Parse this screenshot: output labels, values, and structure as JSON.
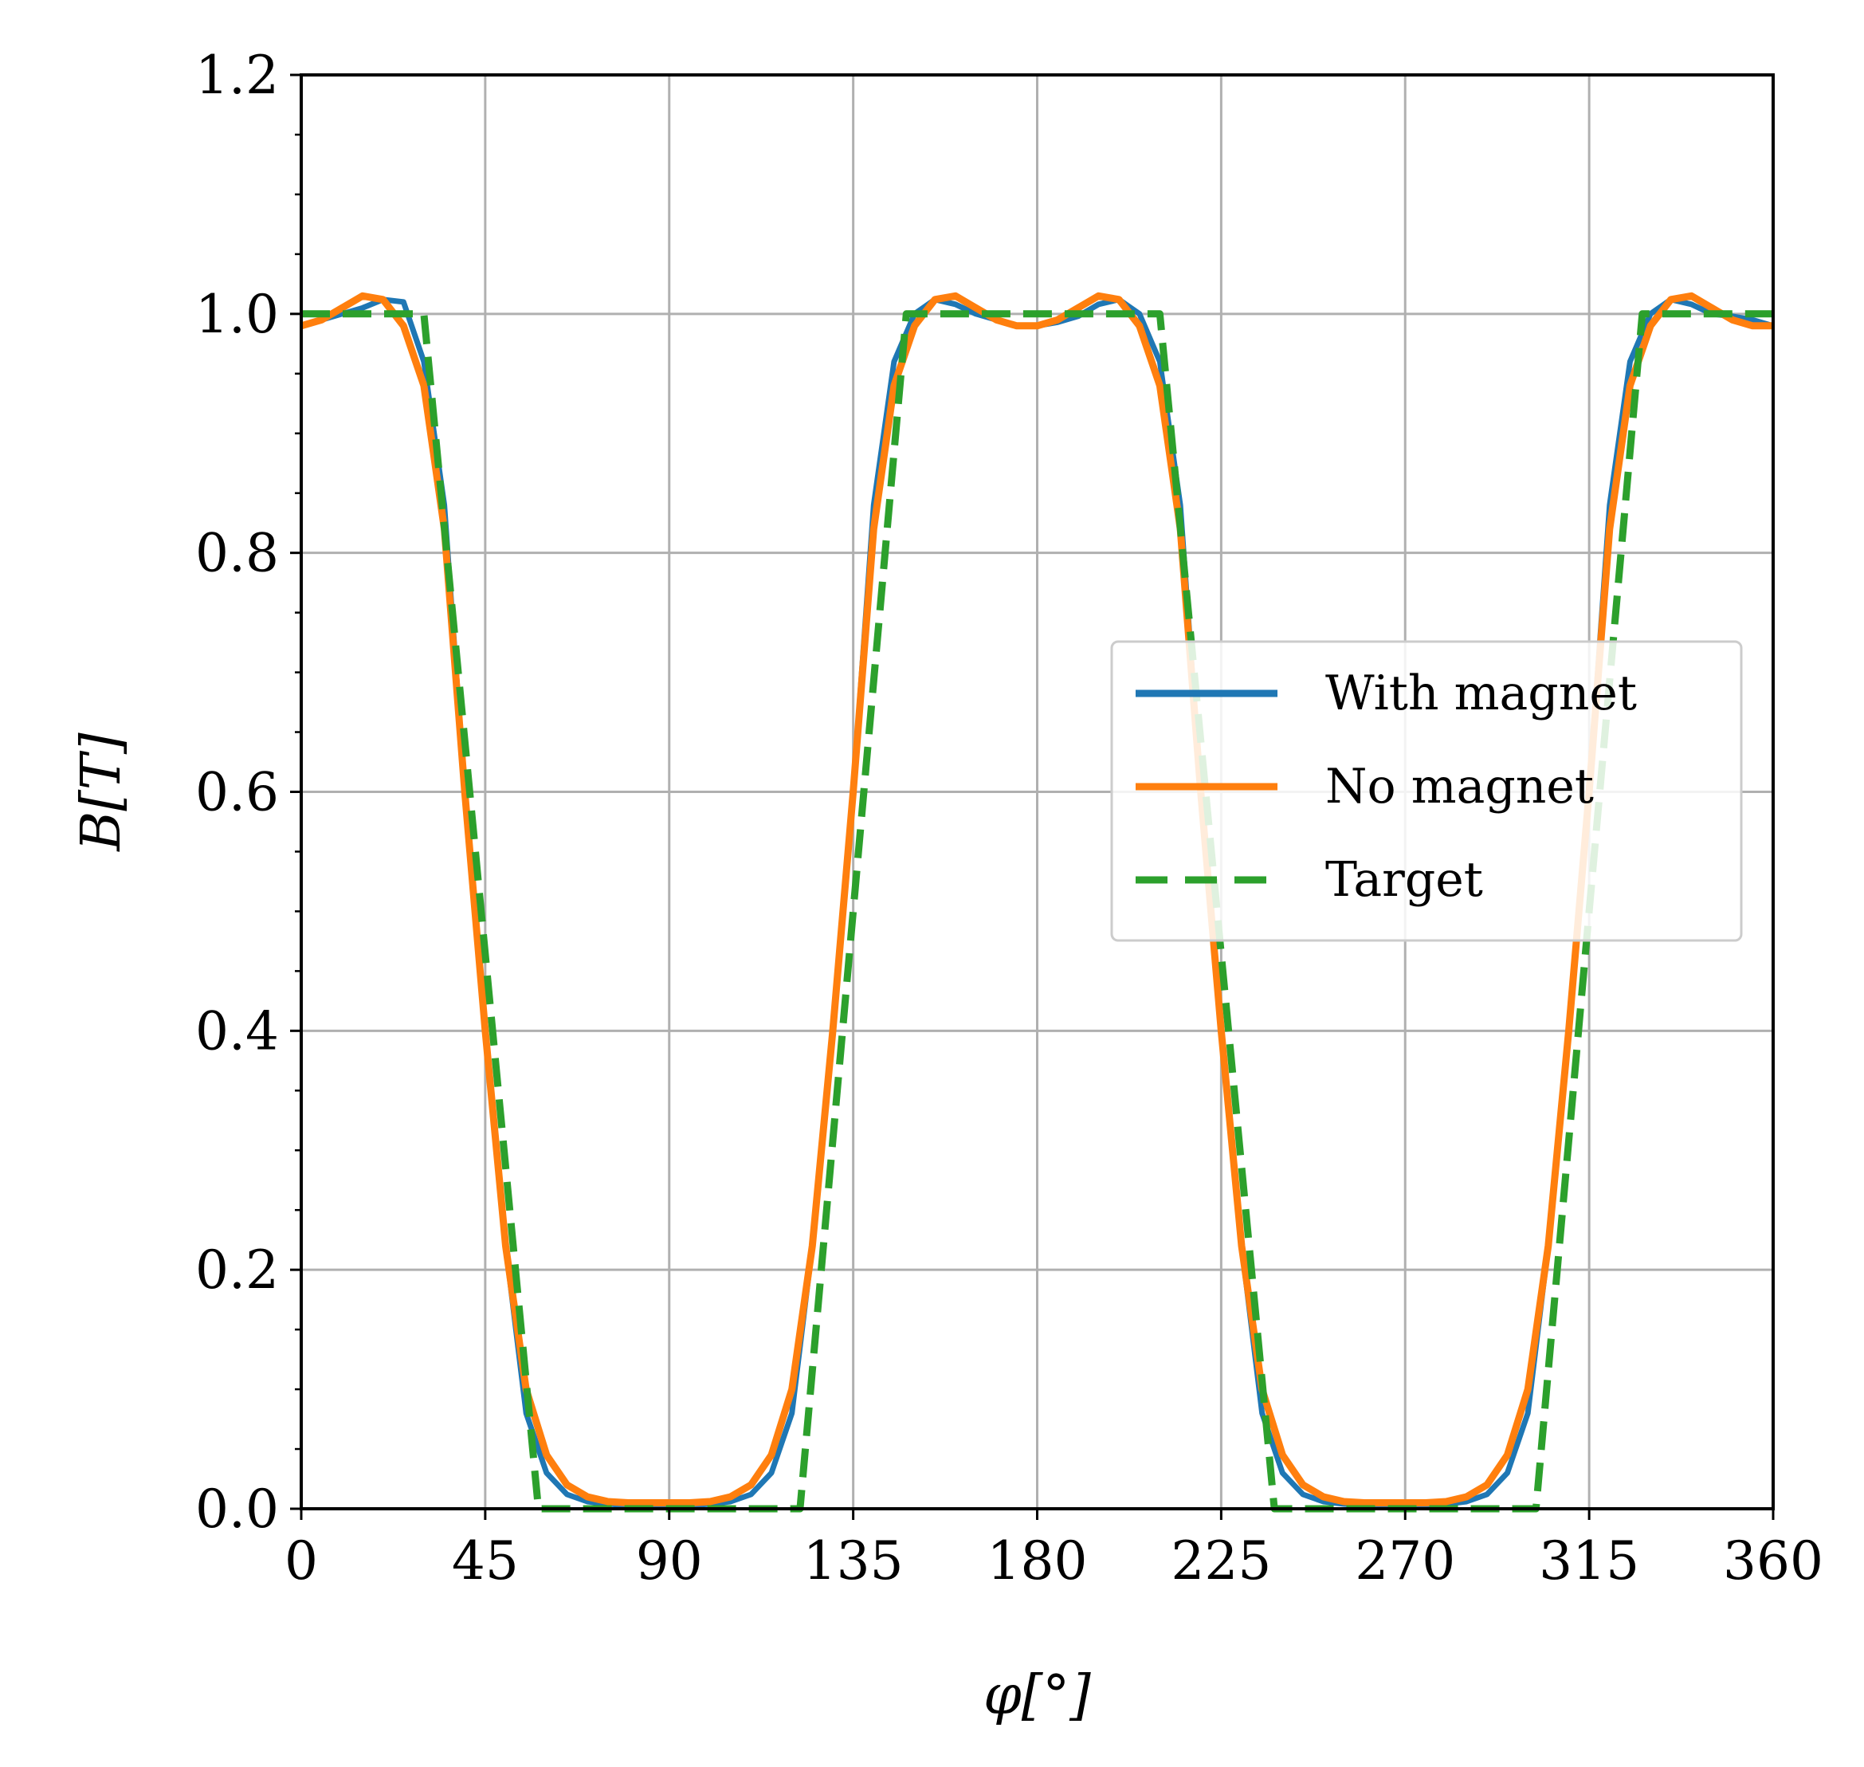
{
  "chart_data": {
    "type": "line",
    "title": "",
    "xlabel": "φ[°]",
    "ylabel": "B[T]",
    "xlim": [
      0,
      360
    ],
    "ylim": [
      0,
      1.2
    ],
    "xticks": [
      0,
      45,
      90,
      135,
      180,
      225,
      270,
      315,
      360
    ],
    "yticks": [
      0.0,
      0.2,
      0.4,
      0.6,
      0.8,
      1.0,
      1.2
    ],
    "xtick_labels": [
      "0",
      "45",
      "90",
      "135",
      "180",
      "225",
      "270",
      "315",
      "360"
    ],
    "ytick_labels": [
      "0.0",
      "0.2",
      "0.4",
      "0.6",
      "0.8",
      "1.0",
      "1.2"
    ],
    "grid": true,
    "legend_position": "center-right",
    "series": [
      {
        "name": "With magnet",
        "color": "#1f77b4",
        "style": "solid",
        "x": [
          0,
          5,
          10,
          15,
          20,
          25,
          30,
          35,
          40,
          45,
          50,
          55,
          60,
          65,
          70,
          75,
          80,
          85,
          90,
          95,
          100,
          105,
          110,
          115,
          120,
          125,
          130,
          135,
          140,
          145,
          150,
          155,
          160,
          165,
          170,
          175,
          180,
          185,
          190,
          195,
          200,
          205,
          210,
          215,
          220,
          225,
          230,
          235,
          240,
          245,
          250,
          255,
          260,
          265,
          270,
          275,
          280,
          285,
          290,
          295,
          300,
          305,
          310,
          315,
          320,
          325,
          330,
          335,
          340,
          345,
          350,
          355,
          360
        ],
        "y": [
          0.99,
          0.995,
          1.0,
          1.005,
          1.012,
          1.01,
          0.96,
          0.84,
          0.6,
          0.4,
          0.22,
          0.08,
          0.03,
          0.012,
          0.006,
          0.004,
          0.003,
          0.003,
          0.003,
          0.003,
          0.004,
          0.006,
          0.012,
          0.03,
          0.08,
          0.22,
          0.4,
          0.6,
          0.84,
          0.96,
          1.0,
          1.012,
          1.008,
          1.0,
          0.995,
          0.99,
          0.99,
          0.993,
          0.998,
          1.008,
          1.012,
          1.0,
          0.96,
          0.84,
          0.6,
          0.4,
          0.22,
          0.08,
          0.03,
          0.012,
          0.006,
          0.004,
          0.003,
          0.003,
          0.003,
          0.003,
          0.004,
          0.006,
          0.012,
          0.03,
          0.08,
          0.22,
          0.4,
          0.6,
          0.84,
          0.96,
          1.0,
          1.012,
          1.008,
          1.0,
          0.998,
          0.995,
          0.99
        ]
      },
      {
        "name": "No magnet",
        "color": "#ff7f0e",
        "style": "solid",
        "x": [
          0,
          5,
          10,
          15,
          20,
          25,
          30,
          35,
          40,
          45,
          50,
          55,
          60,
          65,
          70,
          75,
          80,
          85,
          90,
          95,
          100,
          105,
          110,
          115,
          120,
          125,
          130,
          135,
          140,
          145,
          150,
          155,
          160,
          165,
          170,
          175,
          180,
          185,
          190,
          195,
          200,
          205,
          210,
          215,
          220,
          225,
          230,
          235,
          240,
          245,
          250,
          255,
          260,
          265,
          270,
          275,
          280,
          285,
          290,
          295,
          300,
          305,
          310,
          315,
          320,
          325,
          330,
          335,
          340,
          345,
          350,
          355,
          360
        ],
        "y": [
          0.99,
          0.995,
          1.005,
          1.015,
          1.012,
          0.99,
          0.94,
          0.82,
          0.6,
          0.4,
          0.22,
          0.1,
          0.045,
          0.02,
          0.01,
          0.006,
          0.005,
          0.005,
          0.005,
          0.005,
          0.006,
          0.01,
          0.02,
          0.045,
          0.1,
          0.22,
          0.4,
          0.6,
          0.82,
          0.94,
          0.99,
          1.012,
          1.015,
          1.005,
          0.995,
          0.99,
          0.99,
          0.995,
          1.005,
          1.015,
          1.012,
          0.99,
          0.94,
          0.82,
          0.6,
          0.4,
          0.22,
          0.1,
          0.045,
          0.02,
          0.01,
          0.006,
          0.005,
          0.005,
          0.005,
          0.005,
          0.006,
          0.01,
          0.02,
          0.045,
          0.1,
          0.22,
          0.4,
          0.6,
          0.82,
          0.94,
          0.99,
          1.012,
          1.015,
          1.005,
          0.995,
          0.99,
          0.99
        ]
      },
      {
        "name": "Target",
        "color": "#2ca02c",
        "style": "dashed",
        "x": [
          0,
          30,
          58,
          122,
          148,
          210,
          238,
          302,
          328,
          360
        ],
        "y": [
          1.0,
          1.0,
          0.0,
          0.0,
          1.0,
          1.0,
          0.0,
          0.0,
          1.0,
          1.0
        ]
      }
    ]
  }
}
